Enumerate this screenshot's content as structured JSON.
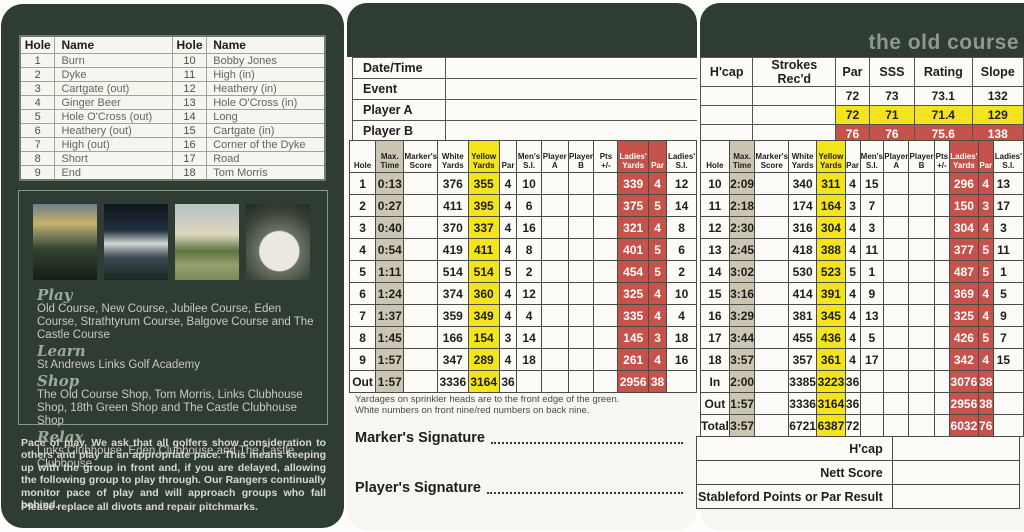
{
  "title": "the old course",
  "colors": {
    "panel_green": "#2f3c34",
    "yellow_tee": "#f4e41e",
    "ladies_red": "#c5534b",
    "time_tan": "#cbc5b4",
    "card_white": "#f7f6f1",
    "title_gray": "#8d998f"
  },
  "left_panel": {
    "hole_names": {
      "headers": [
        "Hole",
        "Name",
        "Hole",
        "Name"
      ],
      "rows": [
        [
          "1",
          "Burn",
          "10",
          "Bobby Jones"
        ],
        [
          "2",
          "Dyke",
          "11",
          "High (in)"
        ],
        [
          "3",
          "Cartgate (out)",
          "12",
          "Heathery (in)"
        ],
        [
          "4",
          "Ginger Beer",
          "13",
          "Hole O'Cross (in)"
        ],
        [
          "5",
          "Hole O'Cross (out)",
          "14",
          "Long"
        ],
        [
          "6",
          "Heathery (out)",
          "15",
          "Cartgate (in)"
        ],
        [
          "7",
          "High (out)",
          "16",
          "Corner of the Dyke"
        ],
        [
          "8",
          "Short",
          "17",
          "Road"
        ],
        [
          "9",
          "End",
          "18",
          "Tom Morris"
        ]
      ]
    },
    "photos": [
      "course-photo",
      "academy-photo",
      "clubhouse-photo",
      "dining-photo"
    ],
    "sections": [
      {
        "heading": "Play",
        "text": "Old Course, New Course, Jubilee Course, Eden Course, Strathtyrum Course, Balgove Course and The Castle Course"
      },
      {
        "heading": "Learn",
        "text": "St Andrews Links Golf Academy"
      },
      {
        "heading": "Shop",
        "text": "The Old Course Shop, Tom Morris, Links Clubhouse Shop, 18th Green Shop and The Castle Clubhouse Shop"
      },
      {
        "heading": "Relax",
        "text": "Links Clubhouse, Eden Clubhouse and The Castle Clubhouse"
      }
    ],
    "pace_text": "Pace of play. We ask that all golfers show consideration to others and play at an appropriate pace. This means keeping up with the group in front and, if you are delayed, allowing the following group to play through. Our Rangers continually monitor pace of play and will approach groups who fall behind.",
    "divots_text": "Please replace all divots and repair pitchmarks."
  },
  "info_rows": [
    "Date/Time",
    "Event",
    "Player A",
    "Player B"
  ],
  "ratings": {
    "headers": [
      "H'cap",
      "Strokes Rec'd",
      "Par",
      "SSS",
      "Rating",
      "Slope"
    ],
    "rows": [
      {
        "tee": "white",
        "values": [
          "72",
          "73",
          "73.1",
          "132"
        ]
      },
      {
        "tee": "yellow",
        "values": [
          "72",
          "71",
          "71.4",
          "129"
        ]
      },
      {
        "tee": "red",
        "values": [
          "76",
          "76",
          "75.6",
          "138"
        ]
      }
    ]
  },
  "scorecard": {
    "headers": [
      [
        "Hole"
      ],
      [
        "Max.",
        "Time"
      ],
      [
        "Marker's",
        "Score"
      ],
      [
        "White",
        "Yards"
      ],
      [
        "Yellow",
        "Yards"
      ],
      [
        "Par"
      ],
      [
        "Men's",
        "S.I."
      ],
      [
        "Player",
        "A"
      ],
      [
        "Player",
        "B"
      ],
      [
        "Pts",
        "+/-"
      ],
      [
        "Ladies'",
        "Yards"
      ],
      [
        "Par"
      ],
      [
        "Ladies'",
        "S.I."
      ]
    ],
    "front_rows": [
      [
        "1",
        "0:13",
        "",
        "376",
        "355",
        "4",
        "10",
        "",
        "",
        "",
        "339",
        "4",
        "12"
      ],
      [
        "2",
        "0:27",
        "",
        "411",
        "395",
        "4",
        "6",
        "",
        "",
        "",
        "375",
        "5",
        "14"
      ],
      [
        "3",
        "0:40",
        "",
        "370",
        "337",
        "4",
        "16",
        "",
        "",
        "",
        "321",
        "4",
        "8"
      ],
      [
        "4",
        "0:54",
        "",
        "419",
        "411",
        "4",
        "8",
        "",
        "",
        "",
        "401",
        "5",
        "6"
      ],
      [
        "5",
        "1:11",
        "",
        "514",
        "514",
        "5",
        "2",
        "",
        "",
        "",
        "454",
        "5",
        "2"
      ],
      [
        "6",
        "1:24",
        "",
        "374",
        "360",
        "4",
        "12",
        "",
        "",
        "",
        "325",
        "4",
        "10"
      ],
      [
        "7",
        "1:37",
        "",
        "359",
        "349",
        "4",
        "4",
        "",
        "",
        "",
        "335",
        "4",
        "4"
      ],
      [
        "8",
        "1:45",
        "",
        "166",
        "154",
        "3",
        "14",
        "",
        "",
        "",
        "145",
        "3",
        "18"
      ],
      [
        "9",
        "1:57",
        "",
        "347",
        "289",
        "4",
        "18",
        "",
        "",
        "",
        "261",
        "4",
        "16"
      ],
      [
        "Out",
        "1:57",
        "",
        "3336",
        "3164",
        "36",
        "",
        "",
        "",
        "",
        "2956",
        "38",
        ""
      ]
    ],
    "back_rows": [
      [
        "10",
        "2:09",
        "",
        "340",
        "311",
        "4",
        "15",
        "",
        "",
        "",
        "296",
        "4",
        "13"
      ],
      [
        "11",
        "2:18",
        "",
        "174",
        "164",
        "3",
        "7",
        "",
        "",
        "",
        "150",
        "3",
        "17"
      ],
      [
        "12",
        "2:30",
        "",
        "316",
        "304",
        "4",
        "3",
        "",
        "",
        "",
        "304",
        "4",
        "3"
      ],
      [
        "13",
        "2:45",
        "",
        "418",
        "388",
        "4",
        "11",
        "",
        "",
        "",
        "377",
        "5",
        "11"
      ],
      [
        "14",
        "3:02",
        "",
        "530",
        "523",
        "5",
        "1",
        "",
        "",
        "",
        "487",
        "5",
        "1"
      ],
      [
        "15",
        "3:16",
        "",
        "414",
        "391",
        "4",
        "9",
        "",
        "",
        "",
        "369",
        "4",
        "5"
      ],
      [
        "16",
        "3:29",
        "",
        "381",
        "345",
        "4",
        "13",
        "",
        "",
        "",
        "325",
        "4",
        "9"
      ],
      [
        "17",
        "3:44",
        "",
        "455",
        "436",
        "4",
        "5",
        "",
        "",
        "",
        "426",
        "5",
        "7"
      ],
      [
        "18",
        "3:57",
        "",
        "357",
        "361",
        "4",
        "17",
        "",
        "",
        "",
        "342",
        "4",
        "15"
      ],
      [
        "In",
        "2:00",
        "",
        "3385",
        "3223",
        "36",
        "",
        "",
        "",
        "",
        "3076",
        "38",
        ""
      ],
      [
        "Out",
        "1:57",
        "",
        "3336",
        "3164",
        "36",
        "",
        "",
        "",
        "",
        "2956",
        "38",
        ""
      ],
      [
        "Total",
        "3:57",
        "",
        "6721",
        "6387",
        "72",
        "",
        "",
        "",
        "",
        "6032",
        "76",
        ""
      ]
    ]
  },
  "notes": [
    "Yardages on sprinkler heads are to the front edge of the green.",
    "White numbers on front nine/red numbers on back nine."
  ],
  "signatures": [
    "Marker's Signature",
    "Player's Signature"
  ],
  "result_rows": [
    "H'cap",
    "Nett Score",
    "Stableford Points or Par Result"
  ]
}
